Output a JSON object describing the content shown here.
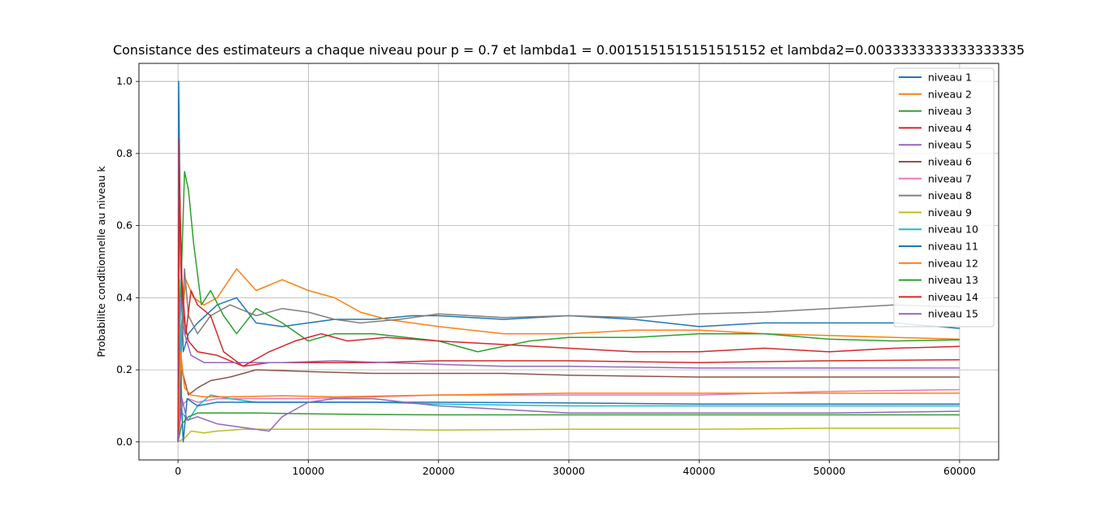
{
  "chart_data": {
    "type": "line",
    "title": "Consistance des estimateurs a chaque niveau pour p = 0.7 et lambda1 = 0.0015151515151515152 et lambda2=0.0033333333333333335",
    "xlabel": "",
    "ylabel": "Probabilite conditionnelle au niveau k",
    "xlim": [
      -3000,
      63000
    ],
    "ylim": [
      -0.05,
      1.05
    ],
    "x_ticks": [
      0,
      10000,
      20000,
      30000,
      40000,
      50000,
      60000
    ],
    "x_tick_labels": [
      "0",
      "10000",
      "20000",
      "30000",
      "40000",
      "50000",
      "60000"
    ],
    "y_ticks": [
      0.0,
      0.2,
      0.4,
      0.6,
      0.8,
      1.0
    ],
    "y_tick_labels": [
      "0.0",
      "0.2",
      "0.4",
      "0.6",
      "0.8",
      "1.0"
    ],
    "grid": true,
    "legend_position": "top-right",
    "series": [
      {
        "name": "niveau 1",
        "color": "#1f77b4",
        "points": [
          [
            0,
            0
          ],
          [
            50,
            1.0
          ],
          [
            100,
            0.84
          ],
          [
            200,
            0.5
          ],
          [
            400,
            0.25
          ],
          [
            800,
            0.3
          ],
          [
            1500,
            0.33
          ],
          [
            3000,
            0.38
          ],
          [
            4500,
            0.4
          ],
          [
            6000,
            0.33
          ],
          [
            8000,
            0.32
          ],
          [
            10000,
            0.33
          ],
          [
            12000,
            0.34
          ],
          [
            15000,
            0.34
          ],
          [
            18000,
            0.35
          ],
          [
            20000,
            0.35
          ],
          [
            25000,
            0.34
          ],
          [
            30000,
            0.35
          ],
          [
            35000,
            0.34
          ],
          [
            40000,
            0.32
          ],
          [
            45000,
            0.33
          ],
          [
            50000,
            0.33
          ],
          [
            55000,
            0.33
          ],
          [
            60000,
            0.315
          ]
        ]
      },
      {
        "name": "niveau 2",
        "color": "#ff7f0e",
        "points": [
          [
            0,
            0
          ],
          [
            200,
            0.3
          ],
          [
            600,
            0.45
          ],
          [
            1200,
            0.4
          ],
          [
            2000,
            0.38
          ],
          [
            3000,
            0.4
          ],
          [
            4500,
            0.48
          ],
          [
            6000,
            0.42
          ],
          [
            8000,
            0.45
          ],
          [
            10000,
            0.42
          ],
          [
            12000,
            0.4
          ],
          [
            14000,
            0.36
          ],
          [
            16000,
            0.34
          ],
          [
            20000,
            0.32
          ],
          [
            25000,
            0.3
          ],
          [
            30000,
            0.3
          ],
          [
            35000,
            0.31
          ],
          [
            40000,
            0.31
          ],
          [
            45000,
            0.3
          ],
          [
            50000,
            0.295
          ],
          [
            55000,
            0.29
          ],
          [
            60000,
            0.285
          ]
        ]
      },
      {
        "name": "niveau 3",
        "color": "#2ca02c",
        "points": [
          [
            0,
            0
          ],
          [
            200,
            0.4
          ],
          [
            500,
            0.75
          ],
          [
            800,
            0.7
          ],
          [
            1200,
            0.55
          ],
          [
            1800,
            0.38
          ],
          [
            2500,
            0.42
          ],
          [
            3500,
            0.35
          ],
          [
            4500,
            0.3
          ],
          [
            6000,
            0.37
          ],
          [
            8000,
            0.33
          ],
          [
            10000,
            0.28
          ],
          [
            12000,
            0.3
          ],
          [
            15000,
            0.3
          ],
          [
            20000,
            0.28
          ],
          [
            23000,
            0.25
          ],
          [
            27000,
            0.28
          ],
          [
            30000,
            0.29
          ],
          [
            35000,
            0.29
          ],
          [
            40000,
            0.3
          ],
          [
            45000,
            0.3
          ],
          [
            50000,
            0.285
          ],
          [
            55000,
            0.28
          ],
          [
            60000,
            0.283
          ]
        ]
      },
      {
        "name": "niveau 4",
        "color": "#d62728",
        "points": [
          [
            0,
            0
          ],
          [
            80,
            0.84
          ],
          [
            200,
            0.5
          ],
          [
            400,
            0.35
          ],
          [
            800,
            0.28
          ],
          [
            1500,
            0.25
          ],
          [
            3000,
            0.24
          ],
          [
            5000,
            0.21
          ],
          [
            7000,
            0.22
          ],
          [
            10000,
            0.22
          ],
          [
            15000,
            0.22
          ],
          [
            20000,
            0.225
          ],
          [
            30000,
            0.225
          ],
          [
            40000,
            0.22
          ],
          [
            50000,
            0.225
          ],
          [
            60000,
            0.228
          ]
        ]
      },
      {
        "name": "niveau 5",
        "color": "#9467bd",
        "points": [
          [
            0,
            0
          ],
          [
            200,
            0.4
          ],
          [
            500,
            0.3
          ],
          [
            1000,
            0.24
          ],
          [
            2000,
            0.22
          ],
          [
            3000,
            0.22
          ],
          [
            5000,
            0.22
          ],
          [
            8000,
            0.22
          ],
          [
            12000,
            0.225
          ],
          [
            16000,
            0.22
          ],
          [
            20000,
            0.215
          ],
          [
            25000,
            0.21
          ],
          [
            30000,
            0.21
          ],
          [
            40000,
            0.205
          ],
          [
            50000,
            0.205
          ],
          [
            60000,
            0.205
          ]
        ]
      },
      {
        "name": "niveau 6",
        "color": "#8c564b",
        "points": [
          [
            0,
            0
          ],
          [
            300,
            0.2
          ],
          [
            800,
            0.13
          ],
          [
            1500,
            0.15
          ],
          [
            2500,
            0.17
          ],
          [
            4000,
            0.18
          ],
          [
            6000,
            0.2
          ],
          [
            10000,
            0.195
          ],
          [
            15000,
            0.19
          ],
          [
            20000,
            0.19
          ],
          [
            25000,
            0.19
          ],
          [
            30000,
            0.185
          ],
          [
            40000,
            0.18
          ],
          [
            50000,
            0.18
          ],
          [
            60000,
            0.18
          ]
        ]
      },
      {
        "name": "niveau 7",
        "color": "#e377c2",
        "points": [
          [
            0,
            0
          ],
          [
            300,
            0.1
          ],
          [
            800,
            0.12
          ],
          [
            1500,
            0.11
          ],
          [
            3000,
            0.12
          ],
          [
            6000,
            0.12
          ],
          [
            10000,
            0.12
          ],
          [
            15000,
            0.125
          ],
          [
            20000,
            0.13
          ],
          [
            30000,
            0.13
          ],
          [
            40000,
            0.13
          ],
          [
            50000,
            0.14
          ],
          [
            60000,
            0.145
          ]
        ]
      },
      {
        "name": "niveau 8",
        "color": "#7f7f7f",
        "points": [
          [
            0,
            0
          ],
          [
            300,
            0.3
          ],
          [
            500,
            0.48
          ],
          [
            800,
            0.35
          ],
          [
            1500,
            0.3
          ],
          [
            2500,
            0.35
          ],
          [
            4000,
            0.38
          ],
          [
            6000,
            0.35
          ],
          [
            8000,
            0.37
          ],
          [
            10000,
            0.36
          ],
          [
            12000,
            0.34
          ],
          [
            14000,
            0.33
          ],
          [
            17000,
            0.34
          ],
          [
            20000,
            0.355
          ],
          [
            25000,
            0.345
          ],
          [
            30000,
            0.35
          ],
          [
            35000,
            0.345
          ],
          [
            40000,
            0.355
          ],
          [
            45000,
            0.36
          ],
          [
            50000,
            0.37
          ],
          [
            55000,
            0.38
          ],
          [
            60000,
            0.375
          ]
        ]
      },
      {
        "name": "niveau 9",
        "color": "#bcbd22",
        "points": [
          [
            0,
            0
          ],
          [
            500,
            0.01
          ],
          [
            1000,
            0.03
          ],
          [
            2000,
            0.025
          ],
          [
            3000,
            0.03
          ],
          [
            5000,
            0.035
          ],
          [
            10000,
            0.035
          ],
          [
            15000,
            0.035
          ],
          [
            20000,
            0.033
          ],
          [
            30000,
            0.035
          ],
          [
            40000,
            0.035
          ],
          [
            50000,
            0.038
          ],
          [
            60000,
            0.038
          ]
        ]
      },
      {
        "name": "niveau 10",
        "color": "#17becf",
        "points": [
          [
            0,
            0
          ],
          [
            100,
            0.45
          ],
          [
            300,
            0.08
          ],
          [
            800,
            0.06
          ],
          [
            1500,
            0.1
          ],
          [
            2500,
            0.13
          ],
          [
            4000,
            0.12
          ],
          [
            6000,
            0.11
          ],
          [
            10000,
            0.11
          ],
          [
            15000,
            0.11
          ],
          [
            20000,
            0.105
          ],
          [
            30000,
            0.1
          ],
          [
            40000,
            0.1
          ],
          [
            50000,
            0.1
          ],
          [
            60000,
            0.1
          ]
        ]
      },
      {
        "name": "niveau 11",
        "color": "#1f77b4",
        "points": [
          [
            0,
            0
          ],
          [
            150,
            0.2
          ],
          [
            400,
            0.0
          ],
          [
            700,
            0.12
          ],
          [
            1500,
            0.1
          ],
          [
            3000,
            0.11
          ],
          [
            6000,
            0.11
          ],
          [
            10000,
            0.11
          ],
          [
            15000,
            0.11
          ],
          [
            20000,
            0.11
          ],
          [
            30000,
            0.108
          ],
          [
            40000,
            0.105
          ],
          [
            50000,
            0.105
          ],
          [
            60000,
            0.105
          ]
        ]
      },
      {
        "name": "niveau 12",
        "color": "#ff7f0e",
        "points": [
          [
            0,
            0
          ],
          [
            200,
            0.25
          ],
          [
            500,
            0.15
          ],
          [
            1000,
            0.13
          ],
          [
            2000,
            0.125
          ],
          [
            4000,
            0.125
          ],
          [
            8000,
            0.128
          ],
          [
            12000,
            0.125
          ],
          [
            20000,
            0.13
          ],
          [
            30000,
            0.135
          ],
          [
            40000,
            0.135
          ],
          [
            50000,
            0.135
          ],
          [
            60000,
            0.135
          ]
        ]
      },
      {
        "name": "niveau 13",
        "color": "#2ca02c",
        "points": [
          [
            0,
            0
          ],
          [
            300,
            0.05
          ],
          [
            800,
            0.07
          ],
          [
            1500,
            0.08
          ],
          [
            3000,
            0.08
          ],
          [
            6000,
            0.08
          ],
          [
            10000,
            0.078
          ],
          [
            15000,
            0.076
          ],
          [
            20000,
            0.075
          ],
          [
            30000,
            0.075
          ],
          [
            40000,
            0.075
          ],
          [
            50000,
            0.075
          ],
          [
            60000,
            0.075
          ]
        ]
      },
      {
        "name": "niveau 14",
        "color": "#d62728",
        "points": [
          [
            0,
            0
          ],
          [
            100,
            0.73
          ],
          [
            300,
            0.45
          ],
          [
            600,
            0.3
          ],
          [
            1000,
            0.42
          ],
          [
            1500,
            0.38
          ],
          [
            2500,
            0.35
          ],
          [
            3500,
            0.25
          ],
          [
            5000,
            0.21
          ],
          [
            7000,
            0.25
          ],
          [
            9000,
            0.28
          ],
          [
            11000,
            0.3
          ],
          [
            13000,
            0.28
          ],
          [
            16000,
            0.29
          ],
          [
            20000,
            0.28
          ],
          [
            25000,
            0.27
          ],
          [
            30000,
            0.26
          ],
          [
            35000,
            0.25
          ],
          [
            40000,
            0.25
          ],
          [
            45000,
            0.26
          ],
          [
            50000,
            0.25
          ],
          [
            55000,
            0.26
          ],
          [
            60000,
            0.265
          ]
        ]
      },
      {
        "name": "niveau 15",
        "color": "#9467bd",
        "points": [
          [
            0,
            0
          ],
          [
            300,
            0.12
          ],
          [
            700,
            0.06
          ],
          [
            1500,
            0.07
          ],
          [
            3000,
            0.05
          ],
          [
            5000,
            0.04
          ],
          [
            7000,
            0.03
          ],
          [
            8000,
            0.07
          ],
          [
            10000,
            0.11
          ],
          [
            12000,
            0.12
          ],
          [
            15000,
            0.12
          ],
          [
            20000,
            0.1
          ],
          [
            25000,
            0.09
          ],
          [
            30000,
            0.08
          ],
          [
            40000,
            0.08
          ],
          [
            50000,
            0.08
          ],
          [
            60000,
            0.085
          ]
        ]
      }
    ]
  }
}
